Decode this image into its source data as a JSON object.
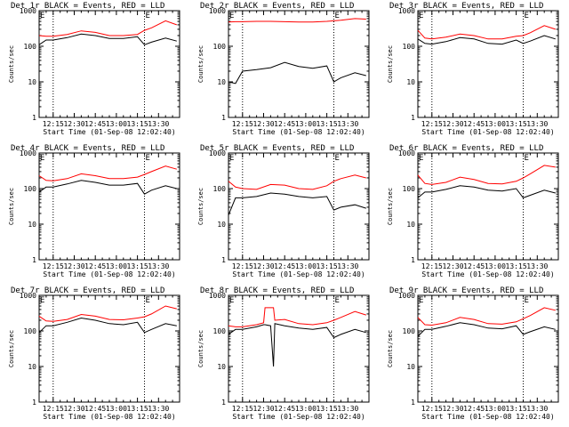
{
  "figure": {
    "xlabel": "Start Time (01-Sep-08 12:02:40)",
    "ylabel": "Counts/sec",
    "xticks": [
      "12:15",
      "12:30",
      "12:45",
      "13:00",
      "13:15",
      "13:30"
    ],
    "yticks": [
      "1",
      "10",
      "100",
      "1000"
    ],
    "marker_e": "E",
    "colors": {
      "events": "#000000",
      "lld": "#ff0000",
      "axes": "#000000",
      "background": "#ffffff"
    }
  },
  "chart_data": [
    {
      "type": "line",
      "title": "Det 1r BLACK = Events, RED = LLD",
      "ylim": [
        1,
        1000
      ],
      "yscale": "log",
      "x": [
        0,
        5,
        10,
        20,
        30,
        40,
        50,
        60,
        70,
        75,
        80,
        90,
        98
      ],
      "series": [
        {
          "name": "Events",
          "color": "#000000",
          "values": [
            110,
            150,
            150,
            175,
            220,
            200,
            165,
            165,
            185,
            110,
            130,
            170,
            140
          ]
        },
        {
          "name": "LLD",
          "color": "#ff0000",
          "values": [
            200,
            190,
            190,
            215,
            270,
            245,
            200,
            200,
            215,
            280,
            330,
            520,
            400
          ]
        }
      ],
      "vlines": [
        10,
        75
      ]
    },
    {
      "type": "line",
      "title": "Det 2r BLACK = Events, RED = LLD",
      "ylim": [
        1,
        1000
      ],
      "yscale": "log",
      "x": [
        0,
        5,
        10,
        20,
        30,
        40,
        50,
        60,
        70,
        75,
        80,
        90,
        98
      ],
      "series": [
        {
          "name": "Events",
          "color": "#000000",
          "values": [
            10,
            9,
            20,
            22,
            25,
            35,
            27,
            24,
            28,
            10,
            13,
            18,
            15
          ]
        },
        {
          "name": "LLD",
          "color": "#ff0000",
          "values": [
            480,
            490,
            490,
            500,
            500,
            490,
            480,
            480,
            500,
            520,
            540,
            600,
            580
          ]
        }
      ],
      "vlines": [
        10,
        75
      ]
    },
    {
      "type": "line",
      "title": "Det 3r BLACK = Events, RED = LLD",
      "ylim": [
        1,
        1000
      ],
      "yscale": "log",
      "x": [
        0,
        5,
        10,
        20,
        30,
        40,
        50,
        60,
        70,
        75,
        80,
        90,
        98
      ],
      "series": [
        {
          "name": "Events",
          "color": "#000000",
          "values": [
            160,
            120,
            115,
            135,
            175,
            160,
            120,
            115,
            150,
            120,
            140,
            200,
            160
          ]
        },
        {
          "name": "LLD",
          "color": "#ff0000",
          "values": [
            280,
            170,
            160,
            180,
            220,
            200,
            160,
            160,
            190,
            200,
            240,
            380,
            300
          ]
        }
      ],
      "vlines": [
        10,
        75
      ]
    },
    {
      "type": "line",
      "title": "Det 4r BLACK = Events, RED = LLD",
      "ylim": [
        1,
        1000
      ],
      "yscale": "log",
      "x": [
        0,
        5,
        10,
        20,
        30,
        40,
        50,
        60,
        70,
        75,
        80,
        90,
        98
      ],
      "series": [
        {
          "name": "Events",
          "color": "#000000",
          "values": [
            80,
            110,
            110,
            135,
            170,
            150,
            125,
            125,
            140,
            70,
            90,
            120,
            100
          ]
        },
        {
          "name": "LLD",
          "color": "#ff0000",
          "values": [
            230,
            170,
            165,
            190,
            260,
            230,
            190,
            190,
            210,
            250,
            300,
            430,
            350
          ]
        }
      ],
      "vlines": [
        10,
        75
      ]
    },
    {
      "type": "line",
      "title": "Det 5r BLACK = Events, RED = LLD",
      "ylim": [
        1,
        1000
      ],
      "yscale": "log",
      "x": [
        0,
        5,
        10,
        20,
        30,
        40,
        50,
        60,
        70,
        75,
        80,
        90,
        98
      ],
      "series": [
        {
          "name": "Events",
          "color": "#000000",
          "values": [
            18,
            55,
            55,
            60,
            75,
            70,
            60,
            55,
            60,
            25,
            30,
            35,
            28
          ]
        },
        {
          "name": "LLD",
          "color": "#ff0000",
          "values": [
            160,
            110,
            100,
            95,
            130,
            125,
            100,
            95,
            120,
            160,
            190,
            240,
            200
          ]
        }
      ],
      "vlines": [
        10,
        75
      ]
    },
    {
      "type": "line",
      "title": "Det 6r BLACK = Events, RED = LLD",
      "ylim": [
        1,
        1000
      ],
      "yscale": "log",
      "x": [
        0,
        5,
        10,
        20,
        30,
        40,
        50,
        60,
        70,
        75,
        80,
        90,
        98
      ],
      "series": [
        {
          "name": "Events",
          "color": "#000000",
          "values": [
            55,
            80,
            80,
            95,
            120,
            110,
            90,
            85,
            100,
            55,
            65,
            90,
            75
          ]
        },
        {
          "name": "LLD",
          "color": "#ff0000",
          "values": [
            240,
            140,
            130,
            150,
            210,
            180,
            140,
            135,
            160,
            200,
            260,
            450,
            400
          ]
        }
      ],
      "vlines": [
        10,
        75
      ]
    },
    {
      "type": "line",
      "title": "Det 7r BLACK = Events, RED = LLD",
      "ylim": [
        1,
        1000
      ],
      "yscale": "log",
      "x": [
        0,
        5,
        10,
        20,
        30,
        40,
        50,
        60,
        70,
        75,
        80,
        90,
        98
      ],
      "series": [
        {
          "name": "Events",
          "color": "#000000",
          "values": [
            90,
            140,
            140,
            175,
            230,
            200,
            160,
            150,
            175,
            90,
            110,
            160,
            140
          ]
        },
        {
          "name": "LLD",
          "color": "#ff0000",
          "values": [
            260,
            190,
            185,
            210,
            290,
            260,
            210,
            205,
            230,
            250,
            300,
            500,
            420
          ]
        }
      ],
      "vlines": [
        10,
        75
      ]
    },
    {
      "type": "line",
      "title": "Det 8r BLACK = Events, RED = LLD",
      "ylim": [
        1,
        1000
      ],
      "yscale": "log",
      "x": [
        0,
        5,
        10,
        20,
        25,
        26,
        30,
        32,
        33,
        40,
        50,
        60,
        70,
        75,
        80,
        90,
        98
      ],
      "series": [
        {
          "name": "Events",
          "color": "#000000",
          "values": [
            80,
            110,
            110,
            130,
            150,
            150,
            140,
            10,
            160,
            140,
            120,
            110,
            125,
            65,
            80,
            110,
            90
          ]
        },
        {
          "name": "LLD",
          "color": "#ff0000",
          "values": [
            140,
            130,
            130,
            150,
            170,
            450,
            450,
            450,
            200,
            210,
            160,
            150,
            170,
            200,
            240,
            350,
            280
          ]
        }
      ],
      "vlines": [
        10,
        75
      ]
    },
    {
      "type": "line",
      "title": "Det 9r BLACK = Events, RED = LLD",
      "ylim": [
        1,
        1000
      ],
      "yscale": "log",
      "x": [
        0,
        5,
        10,
        20,
        30,
        40,
        50,
        60,
        70,
        75,
        80,
        90,
        98
      ],
      "series": [
        {
          "name": "Events",
          "color": "#000000",
          "values": [
            70,
            110,
            110,
            135,
            170,
            150,
            120,
            115,
            140,
            80,
            95,
            130,
            110
          ]
        },
        {
          "name": "LLD",
          "color": "#ff0000",
          "values": [
            240,
            150,
            145,
            170,
            240,
            210,
            160,
            155,
            180,
            220,
            270,
            450,
            380
          ]
        }
      ],
      "vlines": [
        10,
        75
      ]
    }
  ]
}
